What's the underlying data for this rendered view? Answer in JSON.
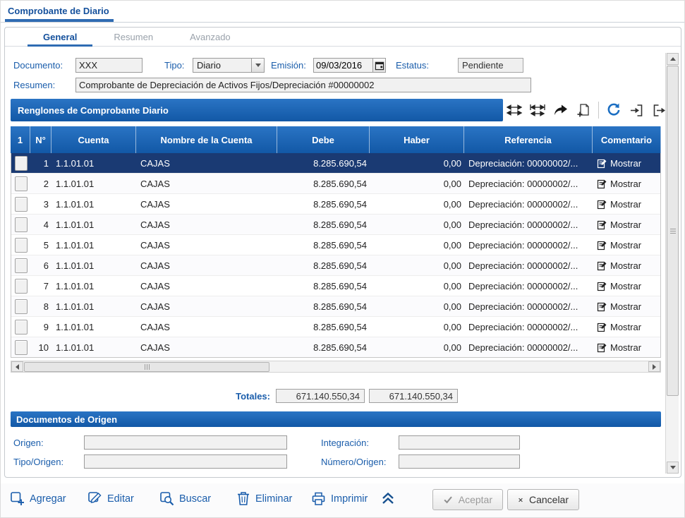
{
  "window": {
    "title": "Comprobante de Diario"
  },
  "tabs": {
    "items": [
      {
        "label": "General"
      },
      {
        "label": "Resumen"
      },
      {
        "label": "Avanzado"
      }
    ]
  },
  "form": {
    "documento": {
      "label": "Documento:",
      "value": "XXX"
    },
    "tipo": {
      "label": "Tipo:",
      "value": "Diario"
    },
    "emision": {
      "label": "Emisión:",
      "value": "09/03/2016"
    },
    "estatus": {
      "label": "Estatus:",
      "value": "Pendiente"
    },
    "resumen": {
      "label": "Resumen:",
      "value": "Comprobante de Depreciación de Activos Fijos/Depreciación #00000002"
    }
  },
  "grid": {
    "title": "Renglones de Comprobante Diario",
    "columns": [
      "1",
      "N°",
      "Cuenta",
      "Nombre de la Cuenta",
      "Debe",
      "Haber",
      "Referencia",
      "Comentario"
    ],
    "selected_row_index": 0,
    "rows": [
      {
        "n": "1",
        "cuenta": "1.1.01.01",
        "nombre": "CAJAS",
        "debe": "8.285.690,54",
        "haber": "0,00",
        "referencia": "Depreciación: 00000002/...",
        "comentario": "Mostrar"
      },
      {
        "n": "2",
        "cuenta": "1.1.01.01",
        "nombre": "CAJAS",
        "debe": "8.285.690,54",
        "haber": "0,00",
        "referencia": "Depreciación: 00000002/...",
        "comentario": "Mostrar"
      },
      {
        "n": "3",
        "cuenta": "1.1.01.01",
        "nombre": "CAJAS",
        "debe": "8.285.690,54",
        "haber": "0,00",
        "referencia": "Depreciación: 00000002/...",
        "comentario": "Mostrar"
      },
      {
        "n": "4",
        "cuenta": "1.1.01.01",
        "nombre": "CAJAS",
        "debe": "8.285.690,54",
        "haber": "0,00",
        "referencia": "Depreciación: 00000002/...",
        "comentario": "Mostrar"
      },
      {
        "n": "5",
        "cuenta": "1.1.01.01",
        "nombre": "CAJAS",
        "debe": "8.285.690,54",
        "haber": "0,00",
        "referencia": "Depreciación: 00000002/...",
        "comentario": "Mostrar"
      },
      {
        "n": "6",
        "cuenta": "1.1.01.01",
        "nombre": "CAJAS",
        "debe": "8.285.690,54",
        "haber": "0,00",
        "referencia": "Depreciación: 00000002/...",
        "comentario": "Mostrar"
      },
      {
        "n": "7",
        "cuenta": "1.1.01.01",
        "nombre": "CAJAS",
        "debe": "8.285.690,54",
        "haber": "0,00",
        "referencia": "Depreciación: 00000002/...",
        "comentario": "Mostrar"
      },
      {
        "n": "8",
        "cuenta": "1.1.01.01",
        "nombre": "CAJAS",
        "debe": "8.285.690,54",
        "haber": "0,00",
        "referencia": "Depreciación: 00000002/...",
        "comentario": "Mostrar"
      },
      {
        "n": "9",
        "cuenta": "1.1.01.01",
        "nombre": "CAJAS",
        "debe": "8.285.690,54",
        "haber": "0,00",
        "referencia": "Depreciación: 00000002/...",
        "comentario": "Mostrar"
      },
      {
        "n": "10",
        "cuenta": "1.1.01.01",
        "nombre": "CAJAS",
        "debe": "8.285.690,54",
        "haber": "0,00",
        "referencia": "Depreciación: 00000002/...",
        "comentario": "Mostrar"
      }
    ]
  },
  "totals": {
    "label": "Totales:",
    "debe": "671.140.550,34",
    "haber": "671.140.550,34"
  },
  "origin": {
    "title": "Documentos de Origen",
    "origen_label": "Origen:",
    "origen_value": "",
    "integracion_label": "Integración:",
    "integracion_value": "",
    "tipo_origen_label": "Tipo/Origen:",
    "tipo_origen_value": "",
    "numero_origen_label": "Número/Origen:",
    "numero_origen_value": ""
  },
  "actions": {
    "agregar": "Agregar",
    "editar": "Editar",
    "buscar": "Buscar",
    "eliminar": "Eliminar",
    "imprimir": "Imprimir",
    "aceptar": "Aceptar",
    "cancelar": "Cancelar"
  },
  "colors": {
    "header_blue": "#1565b8",
    "label_blue": "#1a5dab",
    "selected_row": "#1a3a73"
  }
}
